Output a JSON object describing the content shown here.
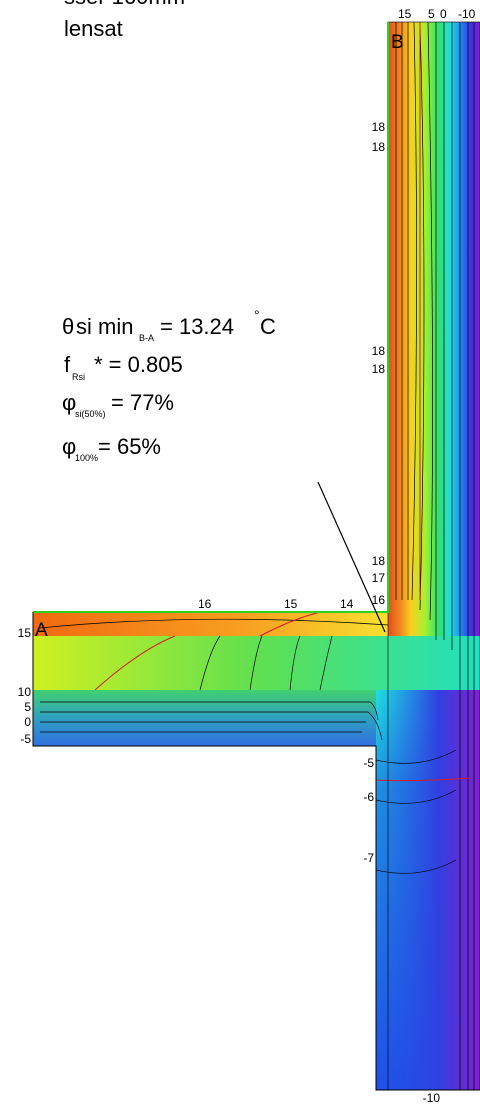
{
  "header": {
    "line1": "sser 160mm",
    "line2": "lensat"
  },
  "corner_labels": {
    "b": "B",
    "a": "A"
  },
  "top_scale": [
    "15",
    "5",
    "0",
    "-10"
  ],
  "wall_labels": [
    "18",
    "18",
    "18",
    "18",
    "18",
    "17",
    "16"
  ],
  "slab_top_labels": [
    "16",
    "15",
    "14"
  ],
  "left_labels": [
    "15",
    "10",
    "5",
    "0",
    "-5"
  ],
  "column_labels": [
    "-5",
    "-6",
    "-7",
    "-10"
  ],
  "annotation": {
    "theta": "θ",
    "theta_text": "si min",
    "theta_sub": "B-A",
    "theta_value": "= 13.24",
    "deg": "°",
    "unit": "C",
    "f": "f",
    "f_sub": "Rsi",
    "f_value": "* = 0.805",
    "phi1": "φ",
    "phi1_sub": "si(50%)",
    "phi1_value": "= 77%",
    "phi2": "φ",
    "phi2_sub": "100%",
    "phi2_value": "= 65%"
  }
}
